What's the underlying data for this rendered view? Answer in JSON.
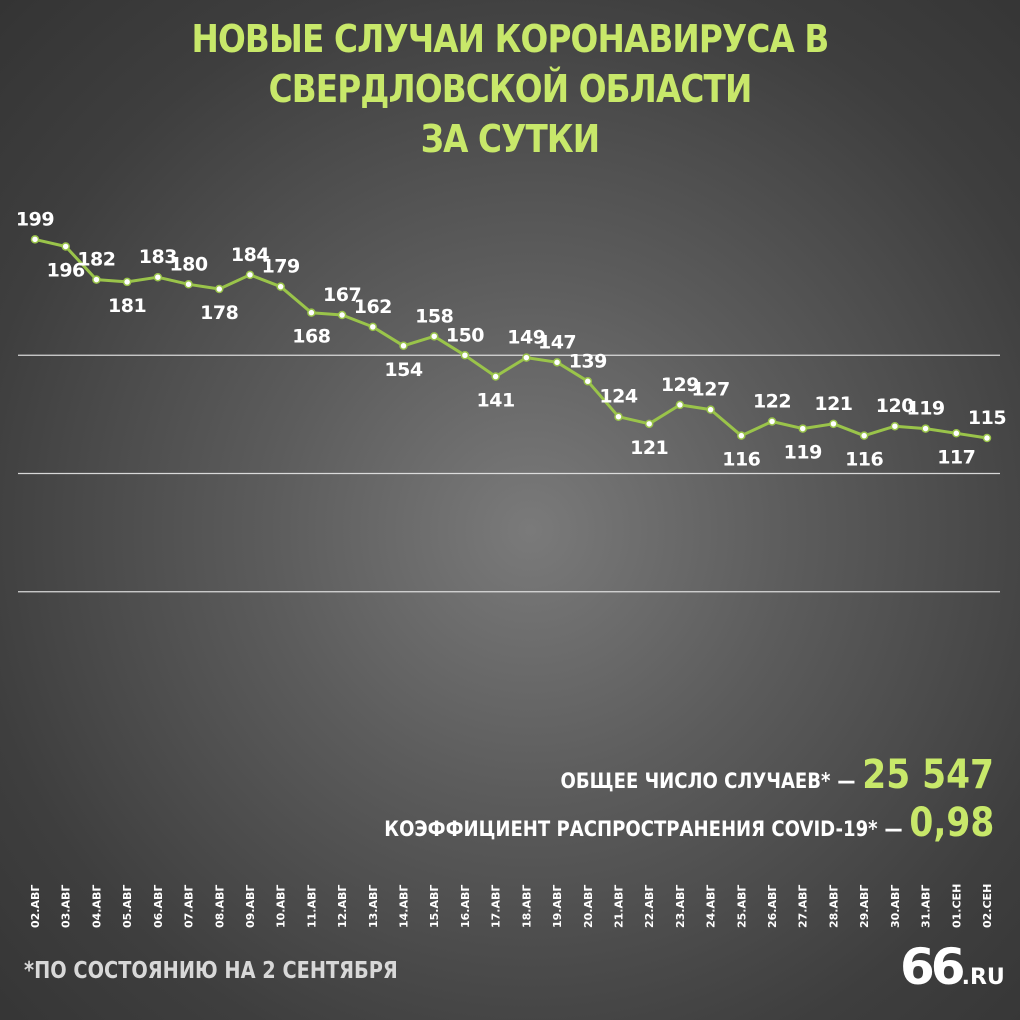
{
  "title": {
    "line1": "НОВЫЕ СЛУЧАИ КОРОНАВИРУСА В СВЕРДЛОВСКОЙ ОБЛАСТИ",
    "line2": "ЗА СУТКИ"
  },
  "stats": {
    "total_label": "ОБЩЕЕ ЧИСЛО СЛУЧАЕВ*",
    "total_value": "25 547",
    "coef_label": "КОЭФФИЦИЕНТ РАСПРОСТРАНЕНИЯ COVID-19*",
    "coef_value": "0,98",
    "dash": "—"
  },
  "footnote": "*ПО СОСТОЯНИЮ НА 2 СЕНТЯБРЯ",
  "logo": {
    "main": "66",
    "suffix": ".RU"
  },
  "colors": {
    "line": "#9ac44a",
    "title": "#c8e86a",
    "grid": "#e8e8e8",
    "text": "#ffffff"
  },
  "chart_data": {
    "type": "line",
    "title": "НОВЫЕ СЛУЧАИ КОРОНАВИРУСА В СВЕРДЛОВСКОЙ ОБЛАСТИ ЗА СУТКИ",
    "categories": [
      "02.АВГ",
      "03.АВГ",
      "04.АВГ",
      "05.АВГ",
      "06.АВГ",
      "07.АВГ",
      "08.АВГ",
      "09.АВГ",
      "10.АВГ",
      "11.АВГ",
      "12.АВГ",
      "13.АВГ",
      "14.АВГ",
      "15.АВГ",
      "16.АВГ",
      "17.АВГ",
      "18.АВГ",
      "19.АВГ",
      "20.АВГ",
      "21.АВГ",
      "22.АВГ",
      "23.АВГ",
      "24.АВГ",
      "25.АВГ",
      "26.АВГ",
      "27.АВГ",
      "28.АВГ",
      "29.АВГ",
      "30.АВГ",
      "31.АВГ",
      "01.СЕН",
      "02.СЕН"
    ],
    "values": [
      199,
      196,
      182,
      181,
      183,
      180,
      178,
      184,
      179,
      168,
      167,
      162,
      154,
      158,
      150,
      141,
      149,
      147,
      139,
      124,
      121,
      129,
      127,
      116,
      122,
      119,
      121,
      116,
      120,
      119,
      117,
      115
    ],
    "label_side": [
      "above",
      "below",
      "above",
      "below",
      "above",
      "above",
      "below",
      "above",
      "above",
      "below",
      "above",
      "above",
      "below",
      "above",
      "above",
      "below",
      "above",
      "above",
      "above",
      "above",
      "below",
      "above",
      "above",
      "below",
      "above",
      "below",
      "above",
      "below",
      "above",
      "above",
      "below",
      "above"
    ],
    "ylim": [
      0,
      200
    ],
    "grid": true,
    "gridlines": [
      50,
      100,
      150
    ],
    "xlabel": "",
    "ylabel": ""
  }
}
